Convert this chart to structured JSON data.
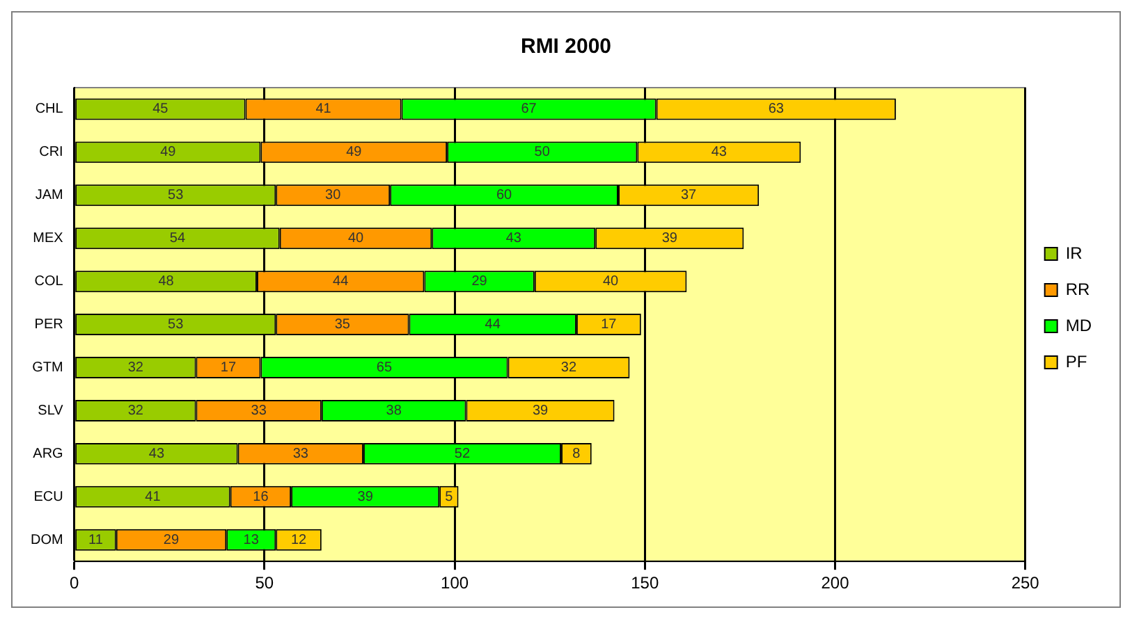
{
  "chart_data": {
    "type": "bar",
    "title": "RMI 2000",
    "orientation": "horizontal",
    "stacked": true,
    "categories": [
      "CHL",
      "CRI",
      "JAM",
      "MEX",
      "COL",
      "PER",
      "GTM",
      "SLV",
      "ARG",
      "ECU",
      "DOM"
    ],
    "series": [
      {
        "name": "IR",
        "color": "#99cc00",
        "values": [
          45,
          49,
          53,
          54,
          48,
          53,
          32,
          32,
          43,
          41,
          11
        ]
      },
      {
        "name": "RR",
        "color": "#ff9900",
        "values": [
          41,
          49,
          30,
          40,
          44,
          35,
          17,
          33,
          33,
          16,
          29
        ]
      },
      {
        "name": "MD",
        "color": "#00ff00",
        "values": [
          67,
          50,
          60,
          43,
          29,
          44,
          65,
          38,
          52,
          39,
          13
        ]
      },
      {
        "name": "PF",
        "color": "#ffcc00",
        "values": [
          63,
          43,
          37,
          39,
          40,
          17,
          32,
          39,
          8,
          5,
          12
        ]
      }
    ],
    "xlim": [
      0,
      250
    ],
    "xticks": [
      0,
      50,
      100,
      150,
      200,
      250
    ],
    "grid": "x",
    "legend": "right",
    "data_labels": true
  }
}
